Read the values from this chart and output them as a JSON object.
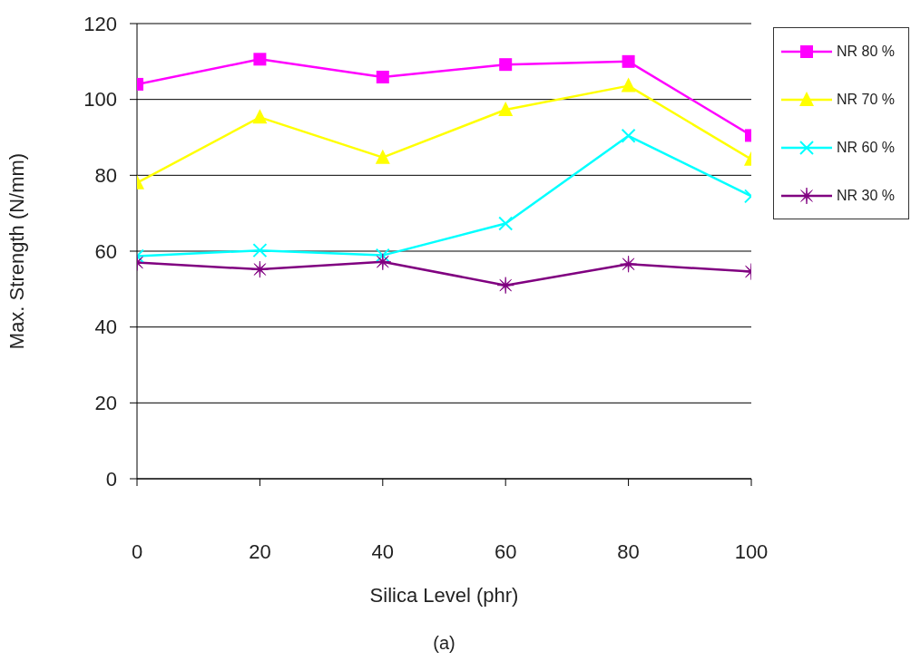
{
  "chart_data": {
    "type": "line",
    "xlabel": "Silica Level (phr)",
    "ylabel": "Max. Strength (N/mm)",
    "annotations": [
      "(a)"
    ],
    "x": [
      0,
      20,
      40,
      60,
      80,
      100
    ],
    "xlim": [
      0,
      100
    ],
    "xticks": [
      0,
      20,
      40,
      60,
      80,
      100
    ],
    "ylim": [
      0,
      120
    ],
    "yticks": [
      0,
      20,
      40,
      60,
      80,
      100,
      120
    ],
    "grid": "y",
    "legend": "right",
    "line_style": "solid",
    "series": [
      {
        "name": "NR 80 %",
        "color": "#ff00ff",
        "marker": "square",
        "values": [
          104.0,
          110.6,
          105.9,
          109.2,
          110.0,
          90.5
        ]
      },
      {
        "name": "NR 70 %",
        "color": "#ffff00",
        "marker": "triangle",
        "values": [
          78.0,
          95.3,
          84.7,
          97.3,
          103.6,
          84.2
        ]
      },
      {
        "name": "NR 60 %",
        "color": "#00ffff",
        "marker": "cross",
        "values": [
          58.7,
          60.2,
          58.9,
          67.3,
          90.4,
          74.5
        ]
      },
      {
        "name": "NR 30 %",
        "color": "#800080",
        "marker": "star",
        "values": [
          57.0,
          55.2,
          57.2,
          51.0,
          56.6,
          54.6
        ]
      }
    ]
  }
}
